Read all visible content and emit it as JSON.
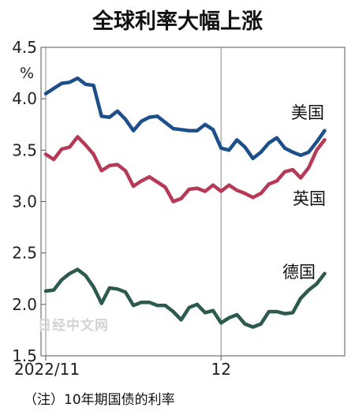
{
  "chart_data": {
    "type": "line",
    "title": "全球利率大幅上涨",
    "unit": "%",
    "ylim": [
      1.5,
      4.5
    ],
    "yticks": [
      "4.5",
      "4.0",
      "3.5",
      "3.0",
      "2.5",
      "2.0",
      "1.5"
    ],
    "xtick_labels": [
      {
        "label": "2022/11",
        "x": 0
      },
      {
        "label": "12",
        "x": 22
      }
    ],
    "grid": "vertical",
    "note": "（注）10年期国债的利率",
    "watermark": "日经中文网",
    "series": [
      {
        "name": "美国",
        "color": "#1d4f8a",
        "values": [
          4.05,
          4.1,
          4.15,
          4.16,
          4.2,
          4.14,
          4.13,
          3.83,
          3.82,
          3.88,
          3.8,
          3.69,
          3.78,
          3.82,
          3.83,
          3.77,
          3.71,
          3.7,
          3.69,
          3.69,
          3.75,
          3.7,
          3.52,
          3.5,
          3.6,
          3.53,
          3.42,
          3.48,
          3.57,
          3.62,
          3.52,
          3.48,
          3.45,
          3.48,
          3.58,
          3.69
        ]
      },
      {
        "name": "英国",
        "color": "#b63a58",
        "values": [
          3.46,
          3.41,
          3.51,
          3.53,
          3.63,
          3.55,
          3.46,
          3.3,
          3.35,
          3.36,
          3.3,
          3.15,
          3.2,
          3.24,
          3.19,
          3.14,
          3.0,
          3.03,
          3.12,
          3.13,
          3.1,
          3.16,
          3.1,
          3.16,
          3.11,
          3.08,
          3.04,
          3.08,
          3.17,
          3.2,
          3.29,
          3.31,
          3.23,
          3.33,
          3.5,
          3.6
        ]
      },
      {
        "name": "德国",
        "color": "#2c5a4e",
        "values": [
          2.13,
          2.14,
          2.24,
          2.3,
          2.34,
          2.28,
          2.17,
          2.01,
          2.16,
          2.15,
          2.12,
          1.99,
          2.02,
          2.02,
          1.99,
          1.99,
          1.93,
          1.85,
          1.97,
          2.0,
          1.92,
          1.94,
          1.82,
          1.87,
          1.9,
          1.81,
          1.78,
          1.81,
          1.93,
          1.93,
          1.91,
          1.92,
          2.06,
          2.14,
          2.2,
          2.3
        ]
      }
    ]
  }
}
